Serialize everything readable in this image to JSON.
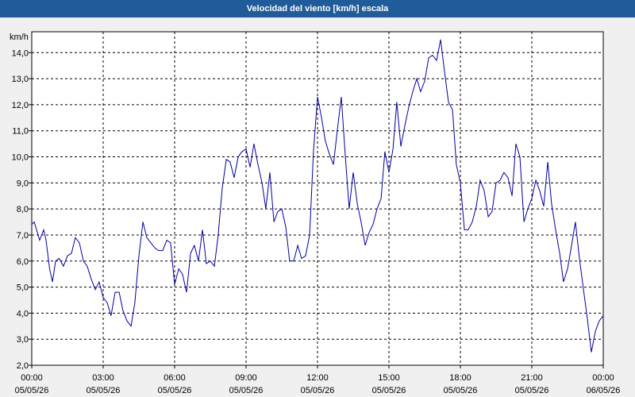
{
  "chart_data": {
    "type": "line",
    "title": "Velocidad del viento [km/h] escala",
    "y_unit": "km/h",
    "ylim": [
      2.0,
      14.8
    ],
    "y_ticks": [
      "2,0",
      "3,0",
      "4,0",
      "5,0",
      "6,0",
      "7,0",
      "8,0",
      "9,0",
      "10,0",
      "11,0",
      "12,0",
      "13,0",
      "14,0"
    ],
    "x_range_hours": [
      0,
      24
    ],
    "x_ticks": [
      {
        "time": "00:00",
        "date": "05/05/26"
      },
      {
        "time": "03:00",
        "date": "05/05/26"
      },
      {
        "time": "06:00",
        "date": "05/05/26"
      },
      {
        "time": "09:00",
        "date": "05/05/26"
      },
      {
        "time": "12:00",
        "date": "05/05/26"
      },
      {
        "time": "15:00",
        "date": "05/05/26"
      },
      {
        "time": "18:00",
        "date": "05/05/26"
      },
      {
        "time": "21:00",
        "date": "05/05/26"
      },
      {
        "time": "00:00",
        "date": "06/05/26"
      }
    ],
    "grid": true,
    "line_color": "#0000a0",
    "series": [
      {
        "x_hours": [
          0.0,
          0.1,
          0.17,
          0.33,
          0.5,
          0.6,
          0.75,
          0.87,
          1.0,
          1.15,
          1.33,
          1.5,
          1.67,
          1.83,
          2.0,
          2.17,
          2.33,
          2.5,
          2.67,
          2.83,
          3.0,
          3.17,
          3.33,
          3.5,
          3.67,
          3.83,
          4.0,
          4.17,
          4.33,
          4.5,
          4.67,
          4.83,
          5.0,
          5.17,
          5.33,
          5.5,
          5.67,
          5.83,
          6.0,
          6.17,
          6.33,
          6.5,
          6.67,
          6.83,
          7.0,
          7.17,
          7.33,
          7.5,
          7.67,
          7.83,
          8.0,
          8.17,
          8.33,
          8.5,
          8.67,
          8.83,
          9.0,
          9.17,
          9.33,
          9.5,
          9.67,
          9.83,
          10.0,
          10.17,
          10.33,
          10.5,
          10.67,
          10.83,
          11.0,
          11.17,
          11.33,
          11.5,
          11.67,
          11.83,
          12.0,
          12.17,
          12.33,
          12.5,
          12.67,
          12.83,
          13.0,
          13.17,
          13.33,
          13.5,
          13.67,
          13.83,
          14.0,
          14.17,
          14.33,
          14.5,
          14.67,
          14.83,
          15.0,
          15.17,
          15.33,
          15.5,
          15.67,
          15.83,
          16.0,
          16.17,
          16.33,
          16.5,
          16.67,
          16.83,
          17.0,
          17.17,
          17.33,
          17.5,
          17.67,
          17.83,
          18.0,
          18.17,
          18.33,
          18.5,
          18.67,
          18.83,
          19.0,
          19.17,
          19.33,
          19.5,
          19.67,
          19.83,
          20.0,
          20.17,
          20.33,
          20.5,
          20.67,
          20.83,
          21.0,
          21.17,
          21.33,
          21.5,
          21.67,
          21.83,
          22.0,
          22.17,
          22.33,
          22.5,
          22.67,
          22.83,
          23.0,
          23.17,
          23.33,
          23.5,
          23.67,
          23.83,
          24.0
        ],
        "y": [
          7.4,
          7.5,
          7.3,
          6.8,
          7.2,
          6.8,
          5.7,
          5.2,
          6.0,
          6.1,
          5.8,
          6.2,
          6.3,
          6.9,
          6.7,
          6.0,
          5.8,
          5.3,
          4.9,
          5.2,
          4.6,
          4.4,
          3.9,
          4.8,
          4.8,
          4.1,
          3.7,
          3.5,
          4.4,
          6.2,
          7.5,
          6.9,
          6.7,
          6.5,
          6.4,
          6.4,
          6.8,
          6.7,
          5.1,
          5.7,
          5.5,
          4.8,
          6.3,
          6.6,
          6.0,
          7.2,
          5.9,
          6.0,
          5.8,
          7.0,
          8.8,
          9.9,
          9.8,
          9.2,
          10.0,
          10.2,
          10.3,
          9.6,
          10.5,
          9.7,
          9.0,
          8.0,
          9.4,
          7.5,
          7.9,
          8.0,
          7.3,
          6.0,
          6.0,
          6.6,
          6.1,
          6.2,
          7.0,
          10.2,
          12.3,
          11.5,
          10.6,
          10.1,
          9.7,
          11.0,
          12.3,
          10.0,
          8.0,
          9.4,
          8.2,
          7.5,
          6.6,
          7.1,
          7.4,
          8.0,
          8.4,
          10.2,
          9.4,
          10.3,
          12.1,
          10.4,
          11.2,
          11.9,
          12.5,
          13.0,
          12.5,
          12.9,
          13.8,
          13.9,
          13.7,
          14.5,
          13.3,
          12.1,
          11.8,
          9.7,
          9.0,
          7.2,
          7.2,
          7.5,
          8.1,
          9.1,
          8.7,
          7.7,
          7.9,
          9.0,
          9.1,
          9.4,
          9.2,
          8.5,
          10.5,
          10.0,
          7.5,
          8.0,
          8.4,
          9.1,
          8.7,
          8.1,
          9.8,
          8.2,
          7.2,
          6.3,
          5.2,
          5.7,
          6.6,
          7.5,
          6.1,
          4.9,
          3.8,
          2.5,
          3.3,
          3.7,
          3.9
        ]
      }
    ]
  }
}
